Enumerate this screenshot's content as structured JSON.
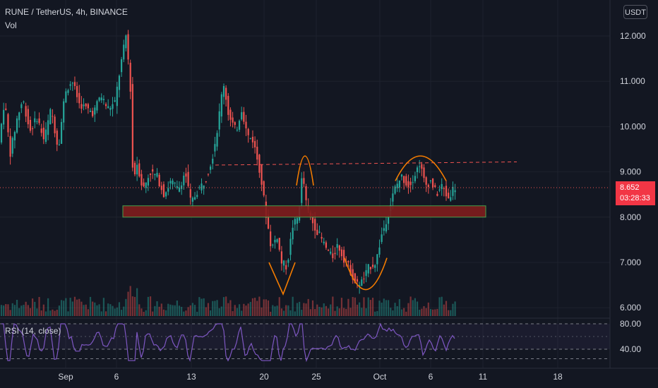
{
  "header": {
    "symbol_line": "RUNE / TetherUS, 4h, BINANCE",
    "volume_label": "Vol",
    "currency_button": "USDT"
  },
  "price_axis": {
    "ticks": [
      "12.000",
      "11.000",
      "10.000",
      "9.000",
      "8.000",
      "7.000",
      "6.000"
    ],
    "current_price": "8.652",
    "countdown": "03:28:33"
  },
  "rsi": {
    "title": "RSI (14, close)",
    "ticks": [
      "80.00",
      "40.00"
    ]
  },
  "time_axis": {
    "ticks": [
      "Sep",
      "6",
      "13",
      "20",
      "25",
      "Oct",
      "6",
      "11",
      "18"
    ]
  },
  "colors": {
    "background": "#131722",
    "up": "#26a69a",
    "down": "#ef5350",
    "rsi_line": "#7e57c2",
    "pattern": "#f57c00",
    "support_zone": "#7f1d1d",
    "price_tag": "#f23645"
  }
}
